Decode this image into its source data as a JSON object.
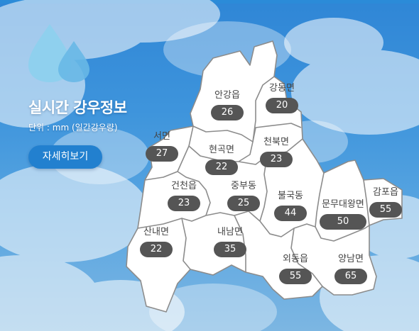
{
  "title": "실시간 강우정보",
  "unit": "단위 : mm (일간강우량)",
  "detail_button": "자세히보기",
  "colors": {
    "sky": "#3f95dc",
    "accent": "#2280cf",
    "badge": "#555555",
    "map_fill": "#ffffff",
    "border": "#8c8c8c"
  },
  "icon": "raindrop-icon",
  "districts": [
    {
      "name": "안강읍",
      "value": "26"
    },
    {
      "name": "강동면",
      "value": "20"
    },
    {
      "name": "서면",
      "value": "27"
    },
    {
      "name": "현곡면",
      "value": "22"
    },
    {
      "name": "천북면",
      "value": "23"
    },
    {
      "name": "건천읍",
      "value": "23"
    },
    {
      "name": "중부동",
      "value": "25"
    },
    {
      "name": "불국동",
      "value": "44"
    },
    {
      "name": "문무대왕면",
      "value": "50"
    },
    {
      "name": "감포읍",
      "value": "55"
    },
    {
      "name": "산내면",
      "value": "22"
    },
    {
      "name": "내남면",
      "value": "35"
    },
    {
      "name": "외동읍",
      "value": "55"
    },
    {
      "name": "양남면",
      "value": "65"
    }
  ]
}
